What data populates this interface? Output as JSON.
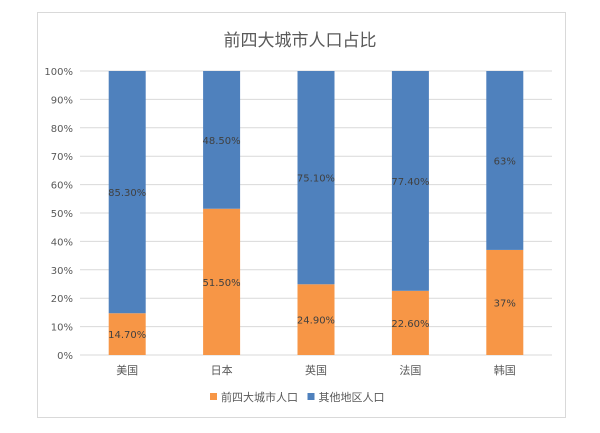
{
  "chart_data": {
    "type": "bar",
    "stacked": "percent",
    "title": "前四大城市人口占比",
    "categories": [
      "美国",
      "日本",
      "英国",
      "法国",
      "韩国"
    ],
    "series": [
      {
        "name": "前四大城市人口",
        "values": [
          14.7,
          51.5,
          24.9,
          22.6,
          37
        ],
        "labels": [
          "14.70%",
          "51.50%",
          "24.90%",
          "22.60%",
          "37%"
        ],
        "color": "#F79646"
      },
      {
        "name": "其他地区人口",
        "values": [
          85.3,
          48.5,
          75.1,
          77.4,
          63
        ],
        "labels": [
          "85.30%",
          "48.50%",
          "75.10%",
          "77.40%",
          "63%"
        ],
        "color": "#4F81BD"
      }
    ],
    "yticks": [
      "0%",
      "10%",
      "20%",
      "30%",
      "40%",
      "50%",
      "60%",
      "70%",
      "80%",
      "90%",
      "100%"
    ],
    "ylim": [
      0,
      100
    ],
    "grid": true,
    "legend": "bottom"
  }
}
